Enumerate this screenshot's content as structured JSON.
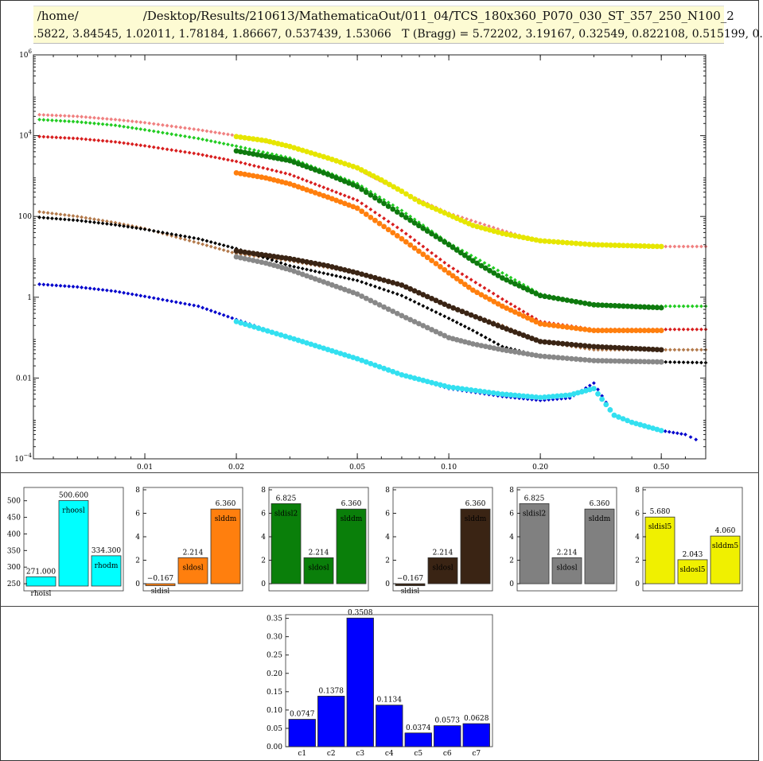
{
  "header": {
    "path": " /home/                 /Desktop/Results/210613/MathematicaOut/011_04/TCS_180x360_P070_030_ST_357_250_N100_2",
    "params": ".5822, 3.84545, 1.02011, 1.78184, 1.86667, 0.537439, 1.53066   T (Bragg) = 5.72202, 3.19167, 0.32549, 0.822108, 0.515199, 0."
  },
  "main_plot": {
    "type": "scatter",
    "x_scale": "log",
    "y_scale": "log",
    "xlim": [
      0.0043,
      0.7
    ],
    "ylim": [
      0.0001,
      1000000
    ],
    "x_ticks": [
      {
        "v": 0.01,
        "label": "0.01"
      },
      {
        "v": 0.02,
        "label": "0.02"
      },
      {
        "v": 0.05,
        "label": "0.05"
      },
      {
        "v": 0.1,
        "label": "0.10"
      },
      {
        "v": 0.2,
        "label": "0.20"
      },
      {
        "v": 0.5,
        "label": "0.50"
      }
    ],
    "y_ticks": [
      {
        "v": 0.0001,
        "base": "10",
        "exp": "−4"
      },
      {
        "v": 0.01,
        "base": "0.01",
        "exp": ""
      },
      {
        "v": 1,
        "base": "1",
        "exp": ""
      },
      {
        "v": 100,
        "base": "100",
        "exp": ""
      },
      {
        "v": 10000,
        "base": "10",
        "exp": "4"
      },
      {
        "v": 1000000,
        "base": "10",
        "exp": "6"
      }
    ],
    "series": [
      {
        "color": "#f08080",
        "marker": "diamond",
        "points": [
          [
            0.0045,
            33000
          ],
          [
            0.006,
            30000
          ],
          [
            0.008,
            25000
          ],
          [
            0.01,
            21000
          ],
          [
            0.015,
            14000
          ],
          [
            0.02,
            10000
          ],
          [
            0.03,
            5500
          ],
          [
            0.05,
            1500
          ],
          [
            0.07,
            400
          ],
          [
            0.1,
            120
          ],
          [
            0.15,
            45
          ],
          [
            0.2,
            24
          ],
          [
            0.3,
            19
          ],
          [
            0.5,
            18
          ],
          [
            0.7,
            18
          ]
        ]
      },
      {
        "color": "#e6e600",
        "marker": "circle",
        "points": [
          [
            0.02,
            9500
          ],
          [
            0.025,
            7500
          ],
          [
            0.03,
            5400
          ],
          [
            0.04,
            2800
          ],
          [
            0.05,
            1600
          ],
          [
            0.06,
            800
          ],
          [
            0.07,
            420
          ],
          [
            0.08,
            230
          ],
          [
            0.1,
            110
          ],
          [
            0.12,
            60
          ],
          [
            0.15,
            38
          ],
          [
            0.2,
            25
          ],
          [
            0.3,
            20
          ],
          [
            0.5,
            18
          ]
        ]
      },
      {
        "color": "#22cc22",
        "marker": "diamond",
        "points": [
          [
            0.0045,
            25000
          ],
          [
            0.006,
            22000
          ],
          [
            0.008,
            18000
          ],
          [
            0.01,
            14000
          ],
          [
            0.015,
            8500
          ],
          [
            0.02,
            5500
          ],
          [
            0.03,
            2800
          ],
          [
            0.05,
            650
          ],
          [
            0.07,
            140
          ],
          [
            0.1,
            22
          ],
          [
            0.15,
            4
          ],
          [
            0.2,
            1.2
          ],
          [
            0.3,
            0.65
          ],
          [
            0.5,
            0.6
          ],
          [
            0.7,
            0.6
          ]
        ]
      },
      {
        "color": "#0e7a0e",
        "marker": "circle",
        "points": [
          [
            0.02,
            4200
          ],
          [
            0.025,
            3100
          ],
          [
            0.03,
            2400
          ],
          [
            0.04,
            1100
          ],
          [
            0.05,
            550
          ],
          [
            0.07,
            110
          ],
          [
            0.1,
            20
          ],
          [
            0.12,
            8
          ],
          [
            0.15,
            3
          ],
          [
            0.2,
            1.1
          ],
          [
            0.3,
            0.65
          ],
          [
            0.5,
            0.55
          ]
        ]
      },
      {
        "color": "#d81e1e",
        "marker": "diamond",
        "points": [
          [
            0.0045,
            9500
          ],
          [
            0.006,
            8500
          ],
          [
            0.008,
            7000
          ],
          [
            0.01,
            5600
          ],
          [
            0.015,
            3500
          ],
          [
            0.02,
            2300
          ],
          [
            0.03,
            1100
          ],
          [
            0.05,
            250
          ],
          [
            0.07,
            45
          ],
          [
            0.1,
            6
          ],
          [
            0.15,
            0.9
          ],
          [
            0.2,
            0.25
          ],
          [
            0.3,
            0.16
          ],
          [
            0.5,
            0.16
          ],
          [
            0.7,
            0.16
          ]
        ]
      },
      {
        "color": "#ff7f0e",
        "marker": "circle",
        "points": [
          [
            0.02,
            1200
          ],
          [
            0.025,
            900
          ],
          [
            0.03,
            640
          ],
          [
            0.04,
            300
          ],
          [
            0.05,
            160
          ],
          [
            0.07,
            28
          ],
          [
            0.1,
            4
          ],
          [
            0.12,
            1.5
          ],
          [
            0.15,
            0.6
          ],
          [
            0.2,
            0.22
          ],
          [
            0.3,
            0.15
          ],
          [
            0.5,
            0.15
          ]
        ]
      },
      {
        "color": "#b37a4c",
        "marker": "diamond",
        "points": [
          [
            0.0045,
            130
          ],
          [
            0.006,
            100
          ],
          [
            0.008,
            70
          ],
          [
            0.01,
            50
          ],
          [
            0.015,
            22
          ],
          [
            0.02,
            12
          ],
          [
            0.03,
            8
          ],
          [
            0.05,
            4
          ],
          [
            0.07,
            2
          ],
          [
            0.1,
            0.6
          ],
          [
            0.15,
            0.2
          ],
          [
            0.2,
            0.08
          ],
          [
            0.3,
            0.05
          ],
          [
            0.5,
            0.05
          ],
          [
            0.7,
            0.05
          ]
        ]
      },
      {
        "color": "#000000",
        "marker": "diamond",
        "points": [
          [
            0.0045,
            95
          ],
          [
            0.006,
            80
          ],
          [
            0.008,
            62
          ],
          [
            0.01,
            48
          ],
          [
            0.015,
            28
          ],
          [
            0.02,
            16
          ],
          [
            0.03,
            6
          ],
          [
            0.05,
            2.6
          ],
          [
            0.07,
            1.1
          ],
          [
            0.1,
            0.3
          ],
          [
            0.12,
            0.15
          ],
          [
            0.15,
            0.06
          ],
          [
            0.2,
            0.035
          ],
          [
            0.3,
            0.026
          ],
          [
            0.5,
            0.025
          ],
          [
            0.7,
            0.024
          ]
        ]
      },
      {
        "color": "#3a2414",
        "marker": "circle",
        "points": [
          [
            0.02,
            14
          ],
          [
            0.025,
            11
          ],
          [
            0.03,
            9
          ],
          [
            0.04,
            6
          ],
          [
            0.05,
            4
          ],
          [
            0.07,
            2
          ],
          [
            0.1,
            0.6
          ],
          [
            0.15,
            0.18
          ],
          [
            0.2,
            0.08
          ],
          [
            0.3,
            0.06
          ],
          [
            0.5,
            0.05
          ]
        ]
      },
      {
        "color": "#888888",
        "marker": "circle",
        "points": [
          [
            0.02,
            10
          ],
          [
            0.025,
            7
          ],
          [
            0.03,
            4.8
          ],
          [
            0.04,
            2.2
          ],
          [
            0.05,
            1.2
          ],
          [
            0.07,
            0.35
          ],
          [
            0.1,
            0.1
          ],
          [
            0.12,
            0.07
          ],
          [
            0.15,
            0.05
          ],
          [
            0.2,
            0.035
          ],
          [
            0.3,
            0.027
          ],
          [
            0.5,
            0.025
          ]
        ]
      },
      {
        "color": "#0000cc",
        "marker": "diamond",
        "points": [
          [
            0.0045,
            2.1
          ],
          [
            0.006,
            1.8
          ],
          [
            0.008,
            1.4
          ],
          [
            0.01,
            1.05
          ],
          [
            0.015,
            0.6
          ],
          [
            0.02,
            0.28
          ],
          [
            0.03,
            0.1
          ],
          [
            0.05,
            0.03
          ],
          [
            0.07,
            0.012
          ],
          [
            0.1,
            0.0055
          ],
          [
            0.15,
            0.0035
          ],
          [
            0.2,
            0.0028
          ],
          [
            0.25,
            0.0032
          ],
          [
            0.3,
            0.0075
          ],
          [
            0.35,
            0.0012
          ],
          [
            0.4,
            0.0008
          ],
          [
            0.5,
            0.0005
          ],
          [
            0.6,
            0.0004
          ],
          [
            0.65,
            0.0003
          ]
        ]
      },
      {
        "color": "#33e0f0",
        "marker": "circle",
        "points": [
          [
            0.02,
            0.25
          ],
          [
            0.03,
            0.1
          ],
          [
            0.05,
            0.03
          ],
          [
            0.07,
            0.012
          ],
          [
            0.1,
            0.006
          ],
          [
            0.15,
            0.004
          ],
          [
            0.2,
            0.0033
          ],
          [
            0.25,
            0.0038
          ],
          [
            0.3,
            0.0055
          ],
          [
            0.35,
            0.0012
          ],
          [
            0.4,
            0.0008
          ],
          [
            0.5,
            0.0005
          ]
        ]
      }
    ]
  },
  "bar_panels": [
    {
      "color": "#00ffff",
      "ymin": 243,
      "ymax": 540,
      "ticks": [
        "250",
        "300",
        "350",
        "400",
        "450",
        "500"
      ],
      "tick_values": [
        250,
        300,
        350,
        400,
        450,
        500
      ],
      "bars": [
        {
          "value": 271.0,
          "value_label": "271.000",
          "name": "rhoisl"
        },
        {
          "value": 500.6,
          "value_label": "500.600",
          "name": "rhoosl"
        },
        {
          "value": 334.3,
          "value_label": "334.300",
          "name": "rhodm"
        }
      ]
    },
    {
      "color": "#ff7f0e",
      "ymin": -0.2,
      "ymax": 8.2,
      "ticks": [
        "0",
        "2",
        "4",
        "6",
        "8"
      ],
      "tick_values": [
        0,
        2,
        4,
        6,
        8
      ],
      "bars": [
        {
          "value": -0.167,
          "value_label": "−0.167",
          "name": "sldisl"
        },
        {
          "value": 2.214,
          "value_label": "2.214",
          "name": "sldosl"
        },
        {
          "value": 6.36,
          "value_label": "6.360",
          "name": "slddm"
        }
      ]
    },
    {
      "color": "#0a7f0a",
      "ymin": -0.2,
      "ymax": 8.2,
      "ticks": [
        "0",
        "2",
        "4",
        "6",
        "8"
      ],
      "tick_values": [
        0,
        2,
        4,
        6,
        8
      ],
      "bars": [
        {
          "value": 6.825,
          "value_label": "6.825",
          "name": "sldisl2"
        },
        {
          "value": 2.214,
          "value_label": "2.214",
          "name": "sldosl"
        },
        {
          "value": 6.36,
          "value_label": "6.360",
          "name": "slddm"
        }
      ]
    },
    {
      "color": "#3a2414",
      "ymin": -0.2,
      "ymax": 8.2,
      "ticks": [
        "0",
        "2",
        "4",
        "6",
        "8"
      ],
      "tick_values": [
        0,
        2,
        4,
        6,
        8
      ],
      "bars": [
        {
          "value": -0.167,
          "value_label": "−0.167",
          "name": "sldisl"
        },
        {
          "value": 2.214,
          "value_label": "2.214",
          "name": "sldosl"
        },
        {
          "value": 6.36,
          "value_label": "6.360",
          "name": "slddm"
        }
      ]
    },
    {
      "color": "#808080",
      "ymin": -0.2,
      "ymax": 8.2,
      "ticks": [
        "0",
        "2",
        "4",
        "6",
        "8"
      ],
      "tick_values": [
        0,
        2,
        4,
        6,
        8
      ],
      "bars": [
        {
          "value": 6.825,
          "value_label": "6.825",
          "name": "sldisl2"
        },
        {
          "value": 2.214,
          "value_label": "2.214",
          "name": "sldosl"
        },
        {
          "value": 6.36,
          "value_label": "6.360",
          "name": "slddm"
        }
      ]
    },
    {
      "color": "#f0f000",
      "ymin": -0.2,
      "ymax": 8.2,
      "ticks": [
        "0",
        "2",
        "4",
        "6",
        "8"
      ],
      "tick_values": [
        0,
        2,
        4,
        6,
        8
      ],
      "bars": [
        {
          "value": 5.68,
          "value_label": "5.680",
          "name": "sldisl5"
        },
        {
          "value": 2.043,
          "value_label": "2.043",
          "name": "sldosl5"
        },
        {
          "value": 4.06,
          "value_label": "4.060",
          "name": "slddm5"
        }
      ]
    }
  ],
  "chart_data": [
    {
      "type": "bar",
      "categories": [
        "c1",
        "c2",
        "c3",
        "c4",
        "c5",
        "c6",
        "c7"
      ],
      "values": [
        0.0747,
        0.1378,
        0.3508,
        0.1134,
        0.0374,
        0.0573,
        0.0628
      ],
      "value_labels": [
        "0.0747",
        "0.1378",
        "0.3508",
        "0.1134",
        "0.0374",
        "0.0573",
        "0.0628"
      ],
      "ylim": [
        0,
        0.36
      ],
      "y_ticks": [
        "0.00",
        "0.05",
        "0.10",
        "0.15",
        "0.20",
        "0.25",
        "0.30",
        "0.35"
      ],
      "y_tick_values": [
        0,
        0.05,
        0.1,
        0.15,
        0.2,
        0.25,
        0.3,
        0.35
      ],
      "color": "#0000ff",
      "grid": false
    }
  ]
}
